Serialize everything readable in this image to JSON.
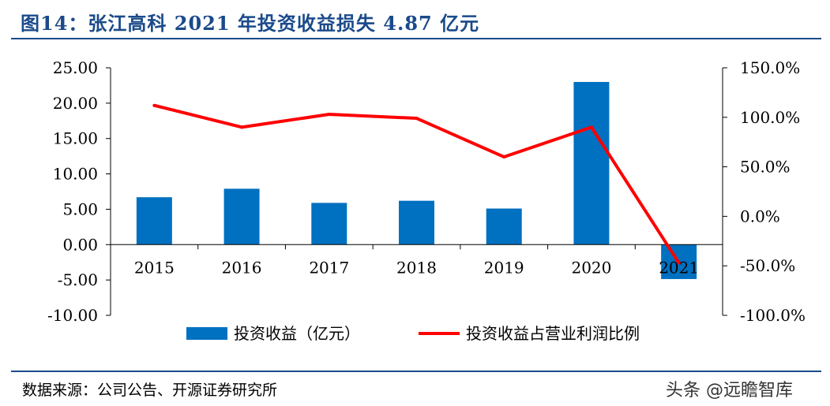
{
  "title": "图14：张江高科 2021 年投资收益损失 4.87 亿元",
  "source": "数据来源：公司公告、开源证券研究所",
  "watermark": "头条 @远瞻智库",
  "colors": {
    "bar": "#0070c0",
    "line": "#ff0000",
    "title": "#1a4a8a"
  },
  "chart_data": {
    "type": "bar",
    "categories": [
      "2015",
      "2016",
      "2017",
      "2018",
      "2019",
      "2020",
      "2021"
    ],
    "series": [
      {
        "name": "投资收益（亿元）",
        "type": "bar",
        "axis": "left",
        "values": [
          6.7,
          7.9,
          5.9,
          6.2,
          5.1,
          23.0,
          -4.87
        ]
      },
      {
        "name": "投资收益占营业利润比例",
        "type": "line",
        "axis": "right",
        "values": [
          112,
          90,
          103,
          99,
          60,
          90,
          -47
        ]
      }
    ],
    "y_left": {
      "min": -10,
      "max": 25,
      "step": 5,
      "tick_labels": [
        "-10.00",
        "-5.00",
        "0.00",
        "5.00",
        "10.00",
        "15.00",
        "20.00",
        "25.00"
      ]
    },
    "y_right": {
      "min": -100,
      "max": 150,
      "step": 50,
      "tick_labels": [
        "-100.0%",
        "-50.0%",
        "0.0%",
        "50.0%",
        "100.0%",
        "150.0%"
      ]
    },
    "legend": {
      "position": "bottom"
    },
    "grid": false
  }
}
